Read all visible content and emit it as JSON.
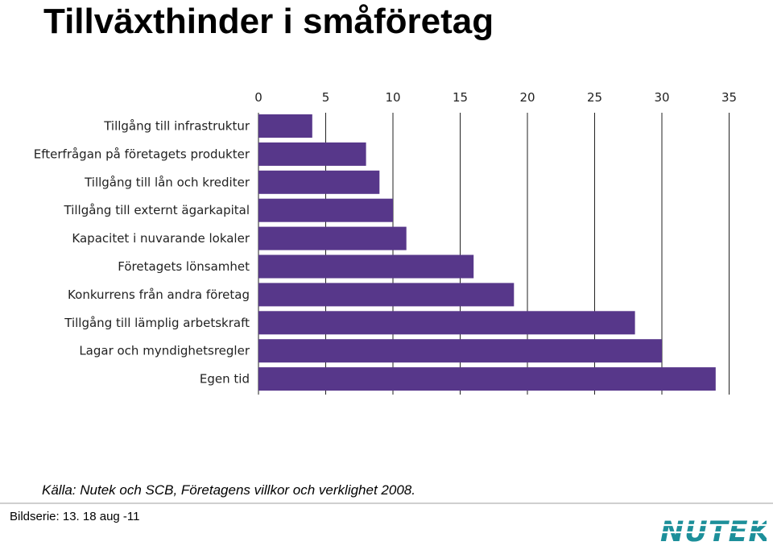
{
  "page": {
    "title": "Tillväxthinder i småföretag",
    "source": "Källa: Nutek och SCB, Företagens villkor och verklighet 2008.",
    "footer": "Bildserie: 13. 18 aug -11",
    "logo_text": "NUTEK"
  },
  "colors": {
    "bar": "#57378a",
    "logo": "#1c8f9a",
    "divider": "#cfcfcf"
  },
  "chart_data": {
    "type": "bar",
    "orientation": "horizontal",
    "categories": [
      "Tillgång till infrastruktur",
      "Efterfrågan på företagets produkter",
      "Tillgång till lån och krediter",
      "Tillgång till externt ägarkapital",
      "Kapacitet i nuvarande lokaler",
      "Företagets lönsamhet",
      "Konkurrens från andra företag",
      "Tillgång till lämplig arbetskraft",
      "Lagar och myndighetsregler",
      "Egen tid"
    ],
    "values": [
      4,
      8,
      9,
      10,
      11,
      16,
      19,
      28,
      30,
      34
    ],
    "xlim": [
      0,
      35
    ],
    "xticks": [
      0,
      5,
      10,
      15,
      20,
      25,
      30,
      35
    ],
    "xaxis_position": "top",
    "grid": "vertical",
    "legend": "none"
  }
}
